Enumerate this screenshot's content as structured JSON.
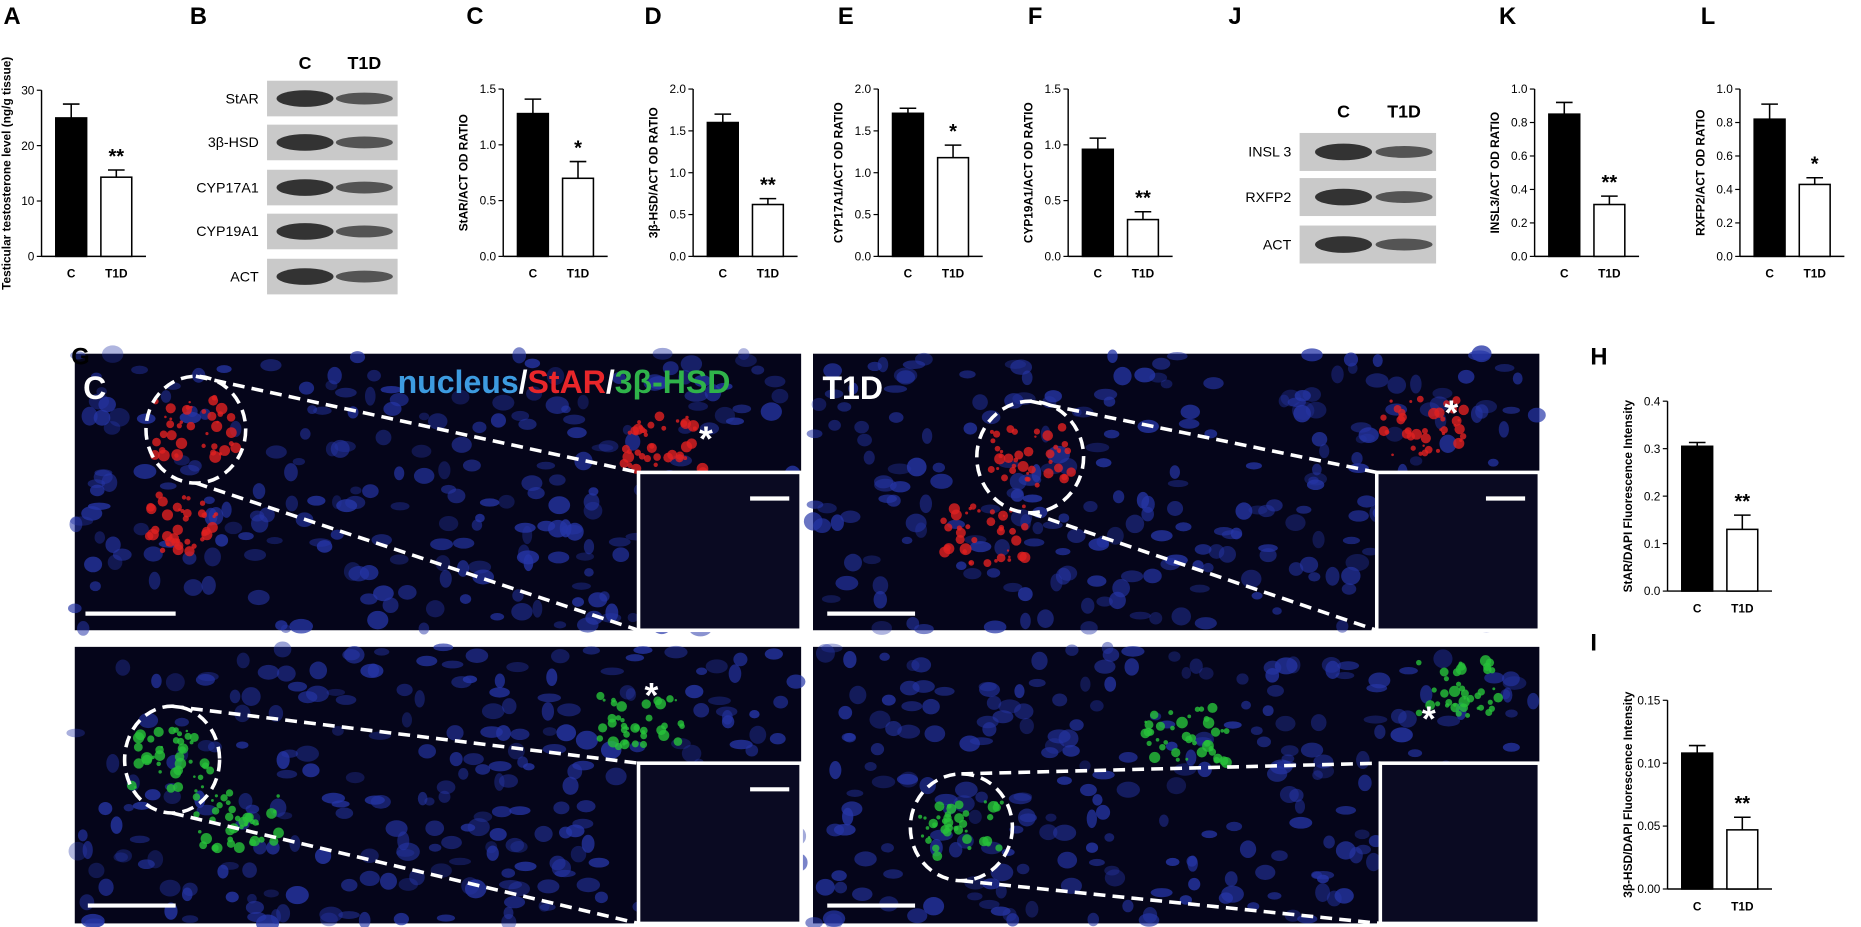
{
  "chart_data": [
    {
      "type": "bar",
      "panel": "A",
      "ylabel": "Testicular testosterone level (ng/g tissue)",
      "categories": [
        "C",
        "T1D"
      ],
      "values": [
        25,
        14.3
      ],
      "errors": [
        2.5,
        1.3
      ],
      "annotations": [
        null,
        "**"
      ],
      "bar_colors": [
        "#000000",
        "#ffffff"
      ],
      "ylim": [
        0,
        30
      ],
      "yticks": [
        0,
        10,
        20,
        30
      ]
    },
    {
      "type": "bar",
      "panel": "C",
      "ylabel": "StAR/ACT OD RATIO",
      "categories": [
        "C",
        "T1D"
      ],
      "values": [
        1.28,
        0.7
      ],
      "errors": [
        0.13,
        0.15
      ],
      "annotations": [
        null,
        "*"
      ],
      "bar_colors": [
        "#000000",
        "#ffffff"
      ],
      "ylim": [
        0,
        1.5
      ],
      "yticks": [
        {
          "value": 0,
          "label": "0.0"
        },
        0.5,
        {
          "value": 1,
          "label": "1.0"
        },
        1.5
      ]
    },
    {
      "type": "bar",
      "panel": "D",
      "ylabel": "3β-HSD/ACT OD RATIO",
      "categories": [
        "C",
        "T1D"
      ],
      "values": [
        1.6,
        0.62
      ],
      "errors": [
        0.1,
        0.07
      ],
      "annotations": [
        null,
        "**"
      ],
      "bar_colors": [
        "#000000",
        "#ffffff"
      ],
      "ylim": [
        0,
        2
      ],
      "yticks": [
        {
          "value": 0,
          "label": "0.0"
        },
        0.5,
        {
          "value": 1,
          "label": "1.0"
        },
        1.5,
        {
          "value": 2,
          "label": "2.0"
        }
      ]
    },
    {
      "type": "bar",
      "panel": "E",
      "ylabel": "CYP17A1/ACT OD RATIO",
      "categories": [
        "C",
        "T1D"
      ],
      "values": [
        1.71,
        1.18
      ],
      "errors": [
        0.06,
        0.15
      ],
      "annotations": [
        null,
        "*"
      ],
      "bar_colors": [
        "#000000",
        "#ffffff"
      ],
      "ylim": [
        0,
        2
      ],
      "yticks": [
        {
          "value": 0,
          "label": "0.0"
        },
        0.5,
        {
          "value": 1,
          "label": "1.0"
        },
        1.5,
        {
          "value": 2,
          "label": "2.0"
        }
      ]
    },
    {
      "type": "bar",
      "panel": "F",
      "ylabel": "CYP19A1/ACT OD RATIO",
      "categories": [
        "C",
        "T1D"
      ],
      "values": [
        0.96,
        0.33
      ],
      "errors": [
        0.1,
        0.07
      ],
      "annotations": [
        null,
        "**"
      ],
      "bar_colors": [
        "#000000",
        "#ffffff"
      ],
      "ylim": [
        0,
        1.5
      ],
      "yticks": [
        {
          "value": 0,
          "label": "0.0"
        },
        0.5,
        {
          "value": 1,
          "label": "1.0"
        },
        1.5
      ]
    },
    {
      "type": "bar",
      "panel": "K",
      "ylabel": "INSL3/ACT OD RATIO",
      "categories": [
        "C",
        "T1D"
      ],
      "values": [
        0.85,
        0.31
      ],
      "errors": [
        0.07,
        0.05
      ],
      "annotations": [
        null,
        "**"
      ],
      "bar_colors": [
        "#000000",
        "#ffffff"
      ],
      "ylim": [
        0,
        1
      ],
      "yticks": [
        {
          "value": 0,
          "label": "0.0"
        },
        0.2,
        0.4,
        0.6,
        0.8,
        {
          "value": 1,
          "label": "1.0"
        }
      ]
    },
    {
      "type": "bar",
      "panel": "L",
      "ylabel": "RXFP2/ACT OD RATIO",
      "categories": [
        "C",
        "T1D"
      ],
      "values": [
        0.82,
        0.43
      ],
      "errors": [
        0.09,
        0.04
      ],
      "annotations": [
        null,
        "*"
      ],
      "bar_colors": [
        "#000000",
        "#ffffff"
      ],
      "ylim": [
        0,
        1
      ],
      "yticks": [
        {
          "value": 0,
          "label": "0.0"
        },
        0.2,
        0.4,
        0.6,
        0.8,
        {
          "value": 1,
          "label": "1.0"
        }
      ]
    },
    {
      "type": "bar",
      "panel": "H",
      "ylabel": "StAR/DAPI Fluorescence Intensity",
      "categories": [
        "C",
        "T1D"
      ],
      "values": [
        0.305,
        0.13
      ],
      "errors": [
        0.008,
        0.03
      ],
      "annotations": [
        null,
        "**"
      ],
      "bar_colors": [
        "#000000",
        "#ffffff"
      ],
      "ylim": [
        0,
        0.4
      ],
      "yticks": [
        {
          "value": 0,
          "label": "0.0"
        },
        0.1,
        0.2,
        0.3,
        0.4
      ]
    },
    {
      "type": "bar",
      "panel": "I",
      "ylabel": "3β-HSD/DAPI Fluorescence Intensity",
      "categories": [
        "C",
        "T1D"
      ],
      "values": [
        0.108,
        0.047
      ],
      "errors": [
        0.006,
        0.01
      ],
      "annotations": [
        null,
        "**"
      ],
      "bar_colors": [
        "#000000",
        "#ffffff"
      ],
      "ylim": [
        0,
        0.15
      ],
      "yticks": [
        {
          "value": 0,
          "label": "0.00"
        },
        0.05,
        {
          "value": 0.1,
          "label": "0.10"
        },
        0.15
      ]
    }
  ],
  "blots": [
    {
      "panel": "B",
      "columns": [
        "C",
        "T1D"
      ],
      "rows": [
        "StAR",
        "3β-HSD",
        "CYP17A1",
        "CYP19A1",
        "ACT"
      ]
    },
    {
      "panel": "J",
      "columns": [
        "C",
        "T1D"
      ],
      "rows": [
        "INSL 3",
        "RXFP2",
        "ACT"
      ]
    }
  ],
  "micrographs": {
    "panel": "G",
    "legend": [
      {
        "text": "nucleus",
        "color": "#3d9be0"
      },
      {
        "text": "/",
        "color": "#ffffff"
      },
      {
        "text": "StAR",
        "color": "#e8262a"
      },
      {
        "text": "/",
        "color": "#ffffff"
      },
      {
        "text": "3β-HSD",
        "color": "#2fb34a"
      }
    ],
    "labels": [
      "C",
      "T1D"
    ],
    "markers": [
      "*",
      "*",
      "*",
      "*"
    ]
  }
}
